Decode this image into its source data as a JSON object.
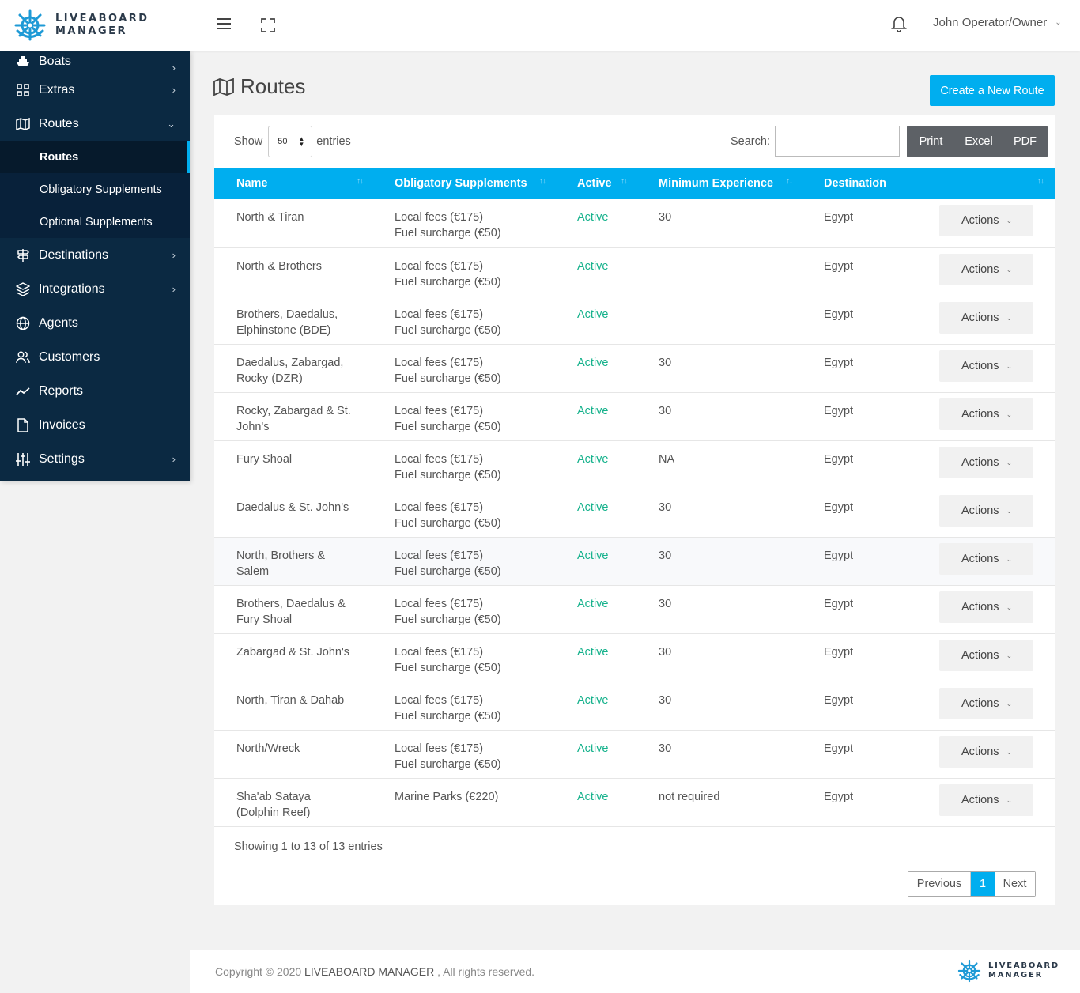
{
  "brand": {
    "line1": "LIVEABOARD",
    "line2": "MANAGER"
  },
  "header": {
    "user_name": "John Operator/Owner"
  },
  "sidebar": {
    "items": [
      {
        "label": "Boats",
        "icon": "ship-icon"
      },
      {
        "label": "Extras",
        "icon": "grid-icon"
      },
      {
        "label": "Routes",
        "icon": "map-icon"
      },
      {
        "label": "Destinations",
        "icon": "signpost-icon"
      },
      {
        "label": "Integrations",
        "icon": "layers-icon"
      },
      {
        "label": "Agents",
        "icon": "globe-icon"
      },
      {
        "label": "Customers",
        "icon": "users-icon"
      },
      {
        "label": "Reports",
        "icon": "trending-icon"
      },
      {
        "label": "Invoices",
        "icon": "file-icon"
      },
      {
        "label": "Settings",
        "icon": "sliders-icon"
      }
    ],
    "routes_sub": [
      {
        "label": "Routes"
      },
      {
        "label": "Obligatory Supplements"
      },
      {
        "label": "Optional Supplements"
      }
    ]
  },
  "page": {
    "title": "Routes",
    "create_button": "Create a New Route"
  },
  "table_controls": {
    "show_label": "Show",
    "entries_label": "entries",
    "page_length": "50",
    "search_label": "Search:",
    "search_value": "",
    "export_buttons": [
      "Print",
      "Excel",
      "PDF"
    ]
  },
  "table": {
    "columns": [
      "Name",
      "Obligatory Supplements",
      "Active",
      "Minimum Experience",
      "Destination",
      ""
    ],
    "action_label": "Actions",
    "rows": [
      {
        "name": [
          "North & Tiran"
        ],
        "supplements": [
          "Local fees (€175)",
          "Fuel surcharge (€50)"
        ],
        "active": "Active",
        "experience": "30",
        "destination": "Egypt"
      },
      {
        "name": [
          "North & Brothers"
        ],
        "supplements": [
          "Local fees (€175)",
          "Fuel surcharge (€50)"
        ],
        "active": "Active",
        "experience": "",
        "destination": "Egypt"
      },
      {
        "name": [
          "Brothers, Daedalus,",
          "Elphinstone (BDE)"
        ],
        "supplements": [
          "Local fees (€175)",
          "Fuel surcharge (€50)"
        ],
        "active": "Active",
        "experience": "",
        "destination": "Egypt"
      },
      {
        "name": [
          "Daedalus, Zabargad,",
          "Rocky (DZR)"
        ],
        "supplements": [
          "Local fees (€175)",
          "Fuel surcharge (€50)"
        ],
        "active": "Active",
        "experience": "30",
        "destination": "Egypt"
      },
      {
        "name": [
          "Rocky, Zabargad & St.",
          "John's"
        ],
        "supplements": [
          "Local fees (€175)",
          "Fuel surcharge (€50)"
        ],
        "active": "Active",
        "experience": "30",
        "destination": "Egypt"
      },
      {
        "name": [
          "Fury Shoal"
        ],
        "supplements": [
          "Local fees (€175)",
          "Fuel surcharge (€50)"
        ],
        "active": "Active",
        "experience": "NA",
        "destination": "Egypt"
      },
      {
        "name": [
          "Daedalus & St. John's"
        ],
        "supplements": [
          "Local fees (€175)",
          "Fuel surcharge (€50)"
        ],
        "active": "Active",
        "experience": "30",
        "destination": "Egypt"
      },
      {
        "name": [
          "North, Brothers &",
          "Salem"
        ],
        "supplements": [
          "Local fees (€175)",
          "Fuel surcharge (€50)"
        ],
        "active": "Active",
        "experience": "30",
        "destination": "Egypt"
      },
      {
        "name": [
          "Brothers, Daedalus &",
          "Fury Shoal"
        ],
        "supplements": [
          "Local fees (€175)",
          "Fuel surcharge (€50)"
        ],
        "active": "Active",
        "experience": "30",
        "destination": "Egypt"
      },
      {
        "name": [
          "Zabargad & St. John's"
        ],
        "supplements": [
          "Local fees (€175)",
          "Fuel surcharge (€50)"
        ],
        "active": "Active",
        "experience": "30",
        "destination": "Egypt"
      },
      {
        "name": [
          "North, Tiran & Dahab"
        ],
        "supplements": [
          "Local fees (€175)",
          "Fuel surcharge (€50)"
        ],
        "active": "Active",
        "experience": "30",
        "destination": "Egypt"
      },
      {
        "name": [
          "North/Wreck"
        ],
        "supplements": [
          "Local fees (€175)",
          "Fuel surcharge (€50)"
        ],
        "active": "Active",
        "experience": "30",
        "destination": "Egypt"
      },
      {
        "name": [
          "Sha'ab Sataya",
          "(Dolphin Reef)"
        ],
        "supplements": [
          "Marine Parks (€220)"
        ],
        "active": "Active",
        "experience": "not required",
        "destination": "Egypt"
      }
    ]
  },
  "pagination": {
    "info": "Showing 1 to 13 of 13 entries",
    "previous": "Previous",
    "current": "1",
    "next": "Next"
  },
  "footer": {
    "copyright_prefix": "Copyright © 2020",
    "brand": "LIVEABOARD MANAGER",
    "suffix": ", All rights reserved."
  },
  "colors": {
    "accent": "#00aeef",
    "sidebar": "#0b2942",
    "active_status": "#16b28c"
  }
}
